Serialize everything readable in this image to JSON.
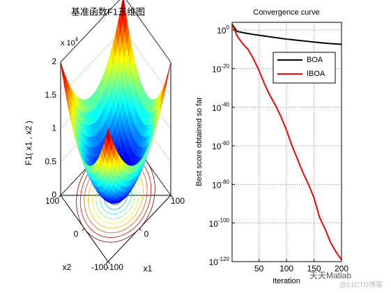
{
  "chart_data": [
    {
      "type": "surface3d",
      "title": "基准函数F1三维图",
      "zlabel": "F1( x1 , x2 )",
      "xlabel": "x1",
      "ylabel": "x2",
      "xlim": [
        -100,
        100
      ],
      "ylim": [
        -100,
        100
      ],
      "zlim": [
        0,
        20000
      ],
      "xticks": [
        -100,
        0,
        100
      ],
      "yticks": [
        -100,
        0,
        100
      ],
      "zticks": [
        0,
        {
          "value": 5000,
          "label": "0.5"
        },
        {
          "value": 10000,
          "label": "1"
        },
        {
          "value": 15000,
          "label": "1.5"
        },
        {
          "value": 20000,
          "label": "2"
        }
      ],
      "zmultiplier": "x 10^4",
      "colormap": "jet"
    },
    {
      "type": "line",
      "title": "Convergence curve",
      "xlabel": "Iteration",
      "ylabel": "Best score obtained so far",
      "log_y": true,
      "grid": true,
      "legend": "upper right",
      "x": [
        1,
        10,
        20,
        30,
        40,
        50,
        60,
        70,
        80,
        90,
        100,
        110,
        120,
        130,
        140,
        150,
        160,
        170,
        180,
        190,
        200
      ],
      "xlim": [
        1,
        200
      ],
      "xticks": [
        50,
        100,
        150,
        200
      ],
      "ylim": [
        1e-120,
        10000.0
      ],
      "yticks": [
        {
          "value": 1,
          "label": "10^0"
        },
        {
          "value": 1e-20,
          "label": "10^-20"
        },
        {
          "value": 1e-40,
          "label": "10^-40"
        },
        {
          "value": 1e-60,
          "label": "10^-60"
        },
        {
          "value": 1e-80,
          "label": "10^-80"
        },
        {
          "value": 1e-100,
          "label": "10^-100"
        },
        {
          "value": 1e-120,
          "label": "10^-120"
        }
      ],
      "series": [
        {
          "name": "BOA",
          "color": "#000000",
          "values": [
            1000,
            0.2,
            0.05,
            0.015,
            0.005,
            0.002,
            0.0008,
            0.0003,
            0.00012,
            5e-05,
            2e-05,
            1e-05,
            5e-06,
            2.5e-06,
            1.2e-06,
            6e-07,
            3e-07,
            1.6e-07,
            9e-08,
            6e-08,
            4e-08
          ]
        },
        {
          "name": "IBOA",
          "color": "#ff0000",
          "values": [
            1000,
            0.001,
            1e-07,
            1e-10,
            1e-15,
            1e-21,
            1e-28,
            1e-34,
            1e-39,
            1e-45,
            1e-52,
            1e-60,
            1e-67,
            1e-74,
            1e-80,
            1e-87,
            1e-97,
            1e-103,
            1e-110,
            1e-115,
            1e-119
          ]
        }
      ]
    }
  ],
  "watermarks": [
    "天天Matlab",
    "@51CTO博客"
  ]
}
